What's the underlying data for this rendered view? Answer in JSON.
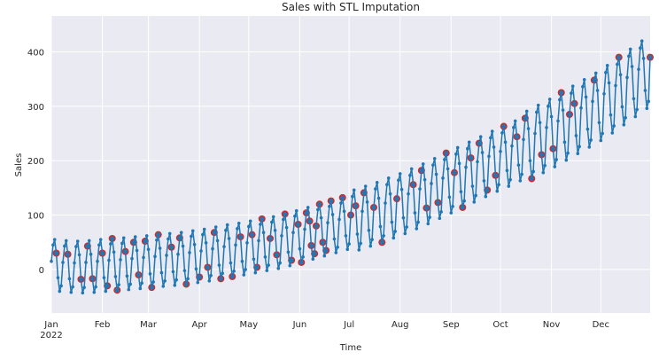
{
  "chart_data": {
    "type": "line",
    "title": "Sales with STL Imputation",
    "xlabel": "Time",
    "ylabel": "Sales",
    "x_start": "2022-01-01",
    "x_frequency": "daily",
    "xlim": [
      "2022-01-01",
      "2022-12-31"
    ],
    "ylim": [
      -80,
      466
    ],
    "yticks": [
      0,
      100,
      200,
      300,
      400
    ],
    "xticks": [
      {
        "date": "2022-01-01",
        "label": "Jan",
        "sublabel": "2022"
      },
      {
        "date": "2022-02-01",
        "label": "Feb"
      },
      {
        "date": "2022-03-01",
        "label": "Mar"
      },
      {
        "date": "2022-04-01",
        "label": "Apr"
      },
      {
        "date": "2022-05-01",
        "label": "May"
      },
      {
        "date": "2022-06-01",
        "label": "Jun"
      },
      {
        "date": "2022-07-01",
        "label": "Jul"
      },
      {
        "date": "2022-08-01",
        "label": "Aug"
      },
      {
        "date": "2022-09-01",
        "label": "Sep"
      },
      {
        "date": "2022-10-01",
        "label": "Oct"
      },
      {
        "date": "2022-11-01",
        "label": "Nov"
      },
      {
        "date": "2022-12-01",
        "label": "Dec"
      }
    ],
    "grid": true,
    "colors": {
      "line": "#1f77b4",
      "imputed": "#d62728",
      "background": "#eaeaf2",
      "grid": "#ffffff"
    },
    "series": [
      {
        "values": [
          15,
          45,
          55,
          30,
          -15,
          -40,
          -30,
          13,
          43,
          53,
          28,
          -17,
          -42,
          -32,
          12,
          42,
          52,
          27,
          -18,
          -43,
          -33,
          13,
          43,
          53,
          28,
          -17,
          -42,
          -32,
          15,
          45,
          55,
          30,
          -15,
          -40,
          -30,
          17,
          47,
          57,
          32,
          -13,
          -38,
          -28,
          18,
          48,
          58,
          33,
          -12,
          -37,
          -27,
          20,
          50,
          60,
          35,
          -10,
          -35,
          -25,
          22,
          52,
          62,
          37,
          -8,
          -33,
          -23,
          24,
          54,
          64,
          39,
          -6,
          -31,
          -21,
          26,
          56,
          66,
          41,
          -4,
          -29,
          -19,
          28,
          58,
          68,
          43,
          -2,
          -27,
          -17,
          31,
          61,
          71,
          46,
          1,
          -24,
          -14,
          34,
          64,
          74,
          49,
          4,
          -21,
          -11,
          38,
          68,
          78,
          53,
          8,
          -17,
          -7,
          42,
          72,
          82,
          57,
          12,
          -13,
          -3,
          45,
          75,
          85,
          60,
          15,
          -10,
          0,
          49,
          79,
          89,
          64,
          19,
          -6,
          4,
          53,
          83,
          93,
          68,
          23,
          -2,
          8,
          57,
          87,
          97,
          72,
          27,
          2,
          12,
          62,
          92,
          102,
          77,
          32,
          7,
          17,
          68,
          98,
          108,
          83,
          38,
          13,
          23,
          74,
          104,
          114,
          89,
          44,
          19,
          29,
          80,
          110,
          120,
          95,
          50,
          25,
          35,
          86,
          116,
          126,
          101,
          56,
          31,
          41,
          92,
          122,
          132,
          107,
          62,
          37,
          47,
          100,
          134,
          146,
          117,
          65,
          36,
          48,
          107,
          141,
          153,
          124,
          72,
          43,
          55,
          114,
          148,
          160,
          131,
          79,
          50,
          62,
          122,
          156,
          168,
          139,
          87,
          58,
          70,
          130,
          164,
          176,
          147,
          95,
          66,
          78,
          139,
          173,
          185,
          156,
          104,
          75,
          87,
          148,
          182,
          194,
          165,
          113,
          84,
          96,
          158,
          192,
          204,
          175,
          123,
          94,
          106,
          168,
          202,
          214,
          185,
          133,
          104,
          116,
          178,
          212,
          224,
          195,
          143,
          114,
          126,
          188,
          222,
          234,
          205,
          153,
          124,
          136,
          198,
          232,
          244,
          215,
          163,
          134,
          146,
          208,
          242,
          254,
          225,
          173,
          144,
          156,
          217,
          251,
          263,
          234,
          182,
          153,
          165,
          227,
          261,
          273,
          244,
          192,
          163,
          175,
          239,
          278,
          291,
          259,
          200,
          167,
          180,
          250,
          289,
          302,
          270,
          211,
          178,
          191,
          261,
          300,
          313,
          281,
          222,
          189,
          202,
          273,
          312,
          325,
          293,
          234,
          201,
          214,
          285,
          324,
          337,
          305,
          246,
          213,
          226,
          297,
          336,
          349,
          317,
          258,
          225,
          238,
          309,
          348,
          361,
          329,
          270,
          237,
          250,
          323,
          362,
          375,
          343,
          284,
          251,
          264,
          338,
          377,
          390,
          358,
          299,
          266,
          279,
          353,
          392,
          405,
          373,
          314,
          281,
          294,
          368,
          407,
          420,
          388,
          329,
          296,
          309,
          390
        ],
        "imputed_points": [
          3,
          10,
          18,
          22,
          25,
          31,
          34,
          37,
          40,
          45,
          50,
          53,
          57,
          61,
          65,
          73,
          78,
          82,
          90,
          95,
          99,
          103,
          110,
          115,
          122,
          125,
          128,
          133,
          137,
          142,
          146,
          150,
          152,
          155,
          157,
          158,
          160,
          161,
          163,
          165,
          167,
          170,
          177,
          182,
          185,
          190,
          196,
          201,
          210,
          220,
          225,
          228,
          235,
          240,
          245,
          250,
          255,
          260,
          265,
          270,
          275,
          283,
          288,
          292,
          298,
          305,
          310,
          315,
          318,
          330,
          345,
          364
        ]
      }
    ]
  }
}
